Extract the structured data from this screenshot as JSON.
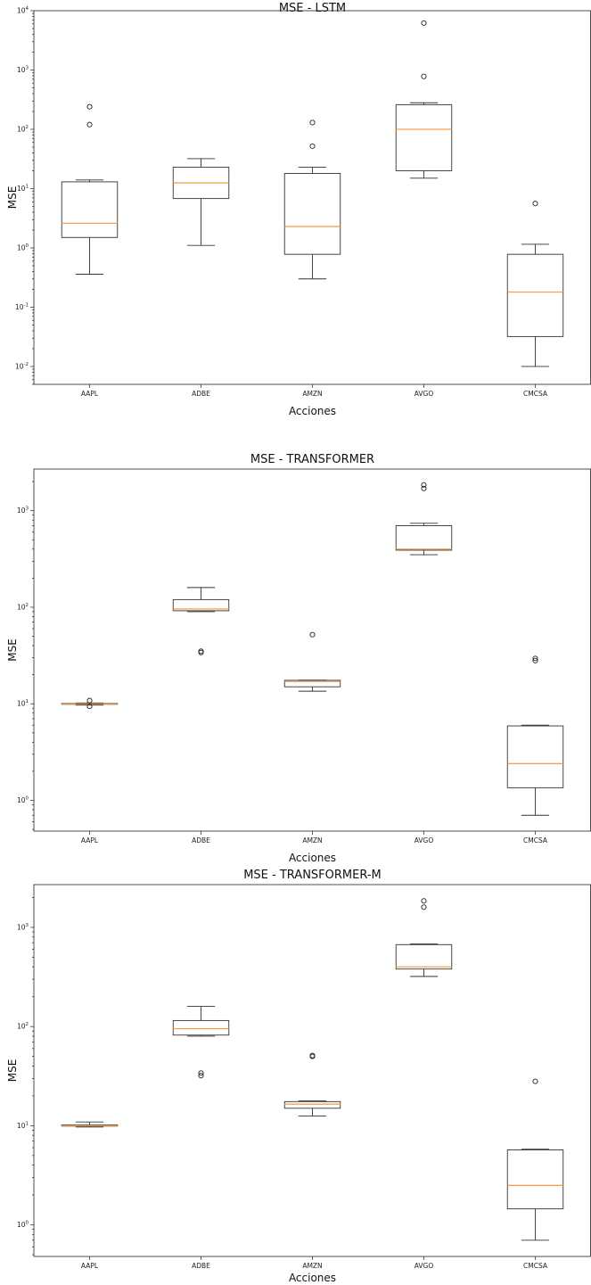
{
  "chart_data": [
    {
      "type": "boxplot",
      "title": "MSE - LSTM",
      "xlabel": "Acciones",
      "ylabel": "MSE",
      "yscale": "log",
      "ylim": [
        0.005,
        10000
      ],
      "y_ticks": [
        {
          "value": 0.01,
          "base": "10",
          "exp": "-2"
        },
        {
          "value": 0.1,
          "base": "10",
          "exp": "-1"
        },
        {
          "value": 1,
          "base": "10",
          "exp": "0"
        },
        {
          "value": 10,
          "base": "10",
          "exp": "1"
        },
        {
          "value": 100,
          "base": "10",
          "exp": "2"
        },
        {
          "value": 1000,
          "base": "10",
          "exp": "3"
        },
        {
          "value": 10000,
          "base": "10",
          "exp": "4"
        }
      ],
      "categories": [
        "AAPL",
        "ADBE",
        "AMZN",
        "AVGO",
        "CMCSA"
      ],
      "boxes": [
        {
          "whislo": 0.36,
          "q1": 1.5,
          "med": 2.6,
          "q3": 13,
          "whishi": 14,
          "fliers": [
            120,
            240
          ]
        },
        {
          "whislo": 1.1,
          "q1": 6.8,
          "med": 12.5,
          "q3": 23,
          "whishi": 32,
          "fliers": []
        },
        {
          "whislo": 0.3,
          "q1": 0.78,
          "med": 2.3,
          "q3": 18,
          "whishi": 23,
          "fliers": [
            52,
            130
          ]
        },
        {
          "whislo": 15,
          "q1": 20,
          "med": 100,
          "q3": 260,
          "whishi": 280,
          "fliers": [
            780,
            6200
          ]
        },
        {
          "whislo": 0.01,
          "q1": 0.032,
          "med": 0.18,
          "q3": 0.78,
          "whishi": 1.15,
          "fliers": [
            5.6
          ]
        }
      ]
    },
    {
      "type": "boxplot",
      "title": "MSE - TRANSFORMER",
      "xlabel": "Acciones",
      "ylabel": "MSE",
      "yscale": "log",
      "ylim": [
        0.48,
        2700
      ],
      "y_ticks": [
        {
          "value": 1,
          "base": "10",
          "exp": "0"
        },
        {
          "value": 10,
          "base": "10",
          "exp": "1"
        },
        {
          "value": 100,
          "base": "10",
          "exp": "2"
        },
        {
          "value": 1000,
          "base": "10",
          "exp": "3"
        }
      ],
      "categories": [
        "AAPL",
        "ADBE",
        "AMZN",
        "AVGO",
        "CMCSA"
      ],
      "boxes": [
        {
          "whislo": 9.7,
          "q1": 9.9,
          "med": 10,
          "q3": 10.1,
          "whishi": 10.2,
          "fliers": [
            9.4,
            10.8
          ]
        },
        {
          "whislo": 90,
          "q1": 92,
          "med": 96,
          "q3": 120,
          "whishi": 160,
          "fliers": [
            34,
            35
          ]
        },
        {
          "whislo": 13.5,
          "q1": 15,
          "med": 17,
          "q3": 17.5,
          "whishi": 17.6,
          "fliers": [
            52
          ]
        },
        {
          "whislo": 350,
          "q1": 390,
          "med": 400,
          "q3": 700,
          "whishi": 740,
          "fliers": [
            1700,
            1850
          ]
        },
        {
          "whislo": 0.7,
          "q1": 1.35,
          "med": 2.4,
          "q3": 5.9,
          "whishi": 6,
          "fliers": [
            28,
            29.5
          ]
        }
      ]
    },
    {
      "type": "boxplot",
      "title": "MSE - TRANSFORMER-M",
      "xlabel": "Acciones",
      "ylabel": "MSE",
      "yscale": "log",
      "ylim": [
        0.48,
        2700
      ],
      "y_ticks": [
        {
          "value": 1,
          "base": "10",
          "exp": "0"
        },
        {
          "value": 10,
          "base": "10",
          "exp": "1"
        },
        {
          "value": 100,
          "base": "10",
          "exp": "2"
        },
        {
          "value": 1000,
          "base": "10",
          "exp": "3"
        }
      ],
      "categories": [
        "AAPL",
        "ADBE",
        "AMZN",
        "AVGO",
        "CMCSA"
      ],
      "boxes": [
        {
          "whislo": 9.7,
          "q1": 9.9,
          "med": 10,
          "q3": 10.2,
          "whishi": 10.9,
          "fliers": []
        },
        {
          "whislo": 80,
          "q1": 82,
          "med": 95,
          "q3": 115,
          "whishi": 160,
          "fliers": [
            32,
            34
          ]
        },
        {
          "whislo": 12.5,
          "q1": 15,
          "med": 16.5,
          "q3": 17.5,
          "whishi": 17.8,
          "fliers": [
            50,
            51
          ]
        },
        {
          "whislo": 320,
          "q1": 380,
          "med": 400,
          "q3": 670,
          "whishi": 680,
          "fliers": [
            1600,
            1850
          ]
        },
        {
          "whislo": 0.7,
          "q1": 1.45,
          "med": 2.5,
          "q3": 5.7,
          "whishi": 5.8,
          "fliers": [
            28
          ]
        }
      ]
    }
  ]
}
